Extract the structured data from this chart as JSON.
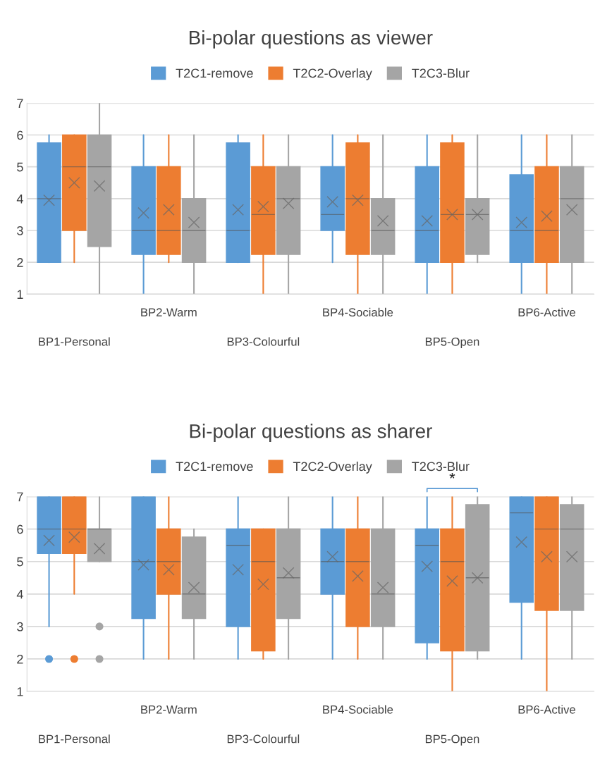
{
  "chart_data": [
    {
      "type": "box",
      "title": "Bi-polar questions as viewer",
      "categories": [
        "BP1-Personal",
        "BP2-Warm",
        "BP3-Colourful",
        "BP4-Sociable",
        "BP5-Open",
        "BP6-Active"
      ],
      "ylim": [
        1,
        7
      ],
      "yticks": [
        1,
        2,
        3,
        4,
        5,
        6,
        7
      ],
      "grid": "y",
      "legend": "top",
      "series": [
        {
          "name": "T2C1-remove",
          "color": "#5b9bd5",
          "boxes": [
            {
              "low": 2,
              "q1": 2,
              "median": 4,
              "q3": 5.75,
              "high": 6,
              "mean": 3.95
            },
            {
              "low": 1,
              "q1": 2.25,
              "median": 3,
              "q3": 5,
              "high": 6,
              "mean": 3.55
            },
            {
              "low": 2,
              "q1": 2,
              "median": 3,
              "q3": 5.75,
              "high": 6,
              "mean": 3.65
            },
            {
              "low": 2,
              "q1": 3,
              "median": 3.5,
              "q3": 5,
              "high": 6,
              "mean": 3.9
            },
            {
              "low": 1,
              "q1": 2,
              "median": 3,
              "q3": 5,
              "high": 6,
              "mean": 3.3
            },
            {
              "low": 1,
              "q1": 2,
              "median": 3,
              "q3": 4.75,
              "high": 6,
              "mean": 3.25
            }
          ]
        },
        {
          "name": "T2C2-Overlay",
          "color": "#ed7d31",
          "boxes": [
            {
              "low": 2,
              "q1": 3,
              "median": 5,
              "q3": 6,
              "high": 6,
              "mean": 4.5
            },
            {
              "low": 2,
              "q1": 2.25,
              "median": 3,
              "q3": 5,
              "high": 6,
              "mean": 3.65
            },
            {
              "low": 1,
              "q1": 2.25,
              "median": 3.5,
              "q3": 5,
              "high": 6,
              "mean": 3.75
            },
            {
              "low": 1,
              "q1": 2.25,
              "median": 4,
              "q3": 5.75,
              "high": 6,
              "mean": 3.95
            },
            {
              "low": 1,
              "q1": 2,
              "median": 3.5,
              "q3": 5.75,
              "high": 6,
              "mean": 3.5
            },
            {
              "low": 1,
              "q1": 2,
              "median": 3,
              "q3": 5,
              "high": 6,
              "mean": 3.45
            }
          ]
        },
        {
          "name": "T2C3-Blur",
          "color": "#a5a5a5",
          "boxes": [
            {
              "low": 1,
              "q1": 2.5,
              "median": 5,
              "q3": 6,
              "high": 7,
              "mean": 4.4
            },
            {
              "low": 1,
              "q1": 2,
              "median": 3,
              "q3": 4,
              "high": 6,
              "mean": 3.25
            },
            {
              "low": 1,
              "q1": 2.25,
              "median": 4,
              "q3": 5,
              "high": 6,
              "mean": 3.85
            },
            {
              "low": 1,
              "q1": 2.25,
              "median": 3,
              "q3": 4,
              "high": 6,
              "mean": 3.3
            },
            {
              "low": 2,
              "q1": 2.25,
              "median": 3.5,
              "q3": 4,
              "high": 6,
              "mean": 3.5
            },
            {
              "low": 1,
              "q1": 2,
              "median": 4,
              "q3": 5,
              "high": 6,
              "mean": 3.65
            }
          ]
        }
      ]
    },
    {
      "type": "box",
      "title": "Bi-polar questions as sharer",
      "categories": [
        "BP1-Personal",
        "BP2-Warm",
        "BP3-Colourful",
        "BP4-Sociable",
        "BP5-Open",
        "BP6-Active"
      ],
      "ylim": [
        1,
        7
      ],
      "yticks": [
        1,
        2,
        3,
        4,
        5,
        6,
        7
      ],
      "grid": "y",
      "legend": "top",
      "annotations": [
        {
          "text": "*",
          "x": "BP5-Open",
          "y": 7
        }
      ],
      "series": [
        {
          "name": "T2C1-remove",
          "color": "#5b9bd5",
          "boxes": [
            {
              "low": 3,
              "q1": 5.25,
              "median": 6,
              "q3": 7,
              "high": 7,
              "mean": 5.65,
              "outliers": [
                2
              ]
            },
            {
              "low": 2,
              "q1": 3.25,
              "median": 5,
              "q3": 7,
              "high": 7,
              "mean": 4.9
            },
            {
              "low": 2,
              "q1": 3,
              "median": 5.5,
              "q3": 6,
              "high": 7,
              "mean": 4.75
            },
            {
              "low": 2,
              "q1": 4,
              "median": 5,
              "q3": 6,
              "high": 7,
              "mean": 5.15
            },
            {
              "low": 2,
              "q1": 2.5,
              "median": 5.5,
              "q3": 6,
              "high": 7,
              "mean": 4.85
            },
            {
              "low": 2,
              "q1": 3.75,
              "median": 6.5,
              "q3": 7,
              "high": 7,
              "mean": 5.6
            }
          ]
        },
        {
          "name": "T2C2-Overlay",
          "color": "#ed7d31",
          "boxes": [
            {
              "low": 4,
              "q1": 5.25,
              "median": 6,
              "q3": 7,
              "high": 7,
              "mean": 5.75,
              "outliers": [
                2
              ]
            },
            {
              "low": 2,
              "q1": 4,
              "median": 5,
              "q3": 6,
              "high": 7,
              "mean": 4.75
            },
            {
              "low": 2,
              "q1": 2.25,
              "median": 5,
              "q3": 6,
              "high": 6,
              "mean": 4.3
            },
            {
              "low": 2,
              "q1": 3,
              "median": 5,
              "q3": 6,
              "high": 7,
              "mean": 4.55
            },
            {
              "low": 1,
              "q1": 2.25,
              "median": 5,
              "q3": 6,
              "high": 7,
              "mean": 4.4
            },
            {
              "low": 1,
              "q1": 3.5,
              "median": 6,
              "q3": 7,
              "high": 7,
              "mean": 5.15
            }
          ]
        },
        {
          "name": "T2C3-Blur",
          "color": "#a5a5a5",
          "boxes": [
            {
              "low": 5,
              "q1": 5,
              "median": 6,
              "q3": 6,
              "high": 7,
              "mean": 5.4,
              "outliers": [
                3,
                2
              ]
            },
            {
              "low": 2,
              "q1": 3.25,
              "median": 4,
              "q3": 5.75,
              "high": 6,
              "mean": 4.2
            },
            {
              "low": 2,
              "q1": 3.25,
              "median": 4.5,
              "q3": 6,
              "high": 7,
              "mean": 4.65
            },
            {
              "low": 2,
              "q1": 3,
              "median": 4,
              "q3": 6,
              "high": 7,
              "mean": 4.2
            },
            {
              "low": 2,
              "q1": 2.25,
              "median": 4.5,
              "q3": 6.75,
              "high": 7,
              "mean": 4.5
            },
            {
              "low": 2,
              "q1": 3.5,
              "median": 6,
              "q3": 6.75,
              "high": 7,
              "mean": 5.15
            }
          ]
        }
      ]
    }
  ]
}
